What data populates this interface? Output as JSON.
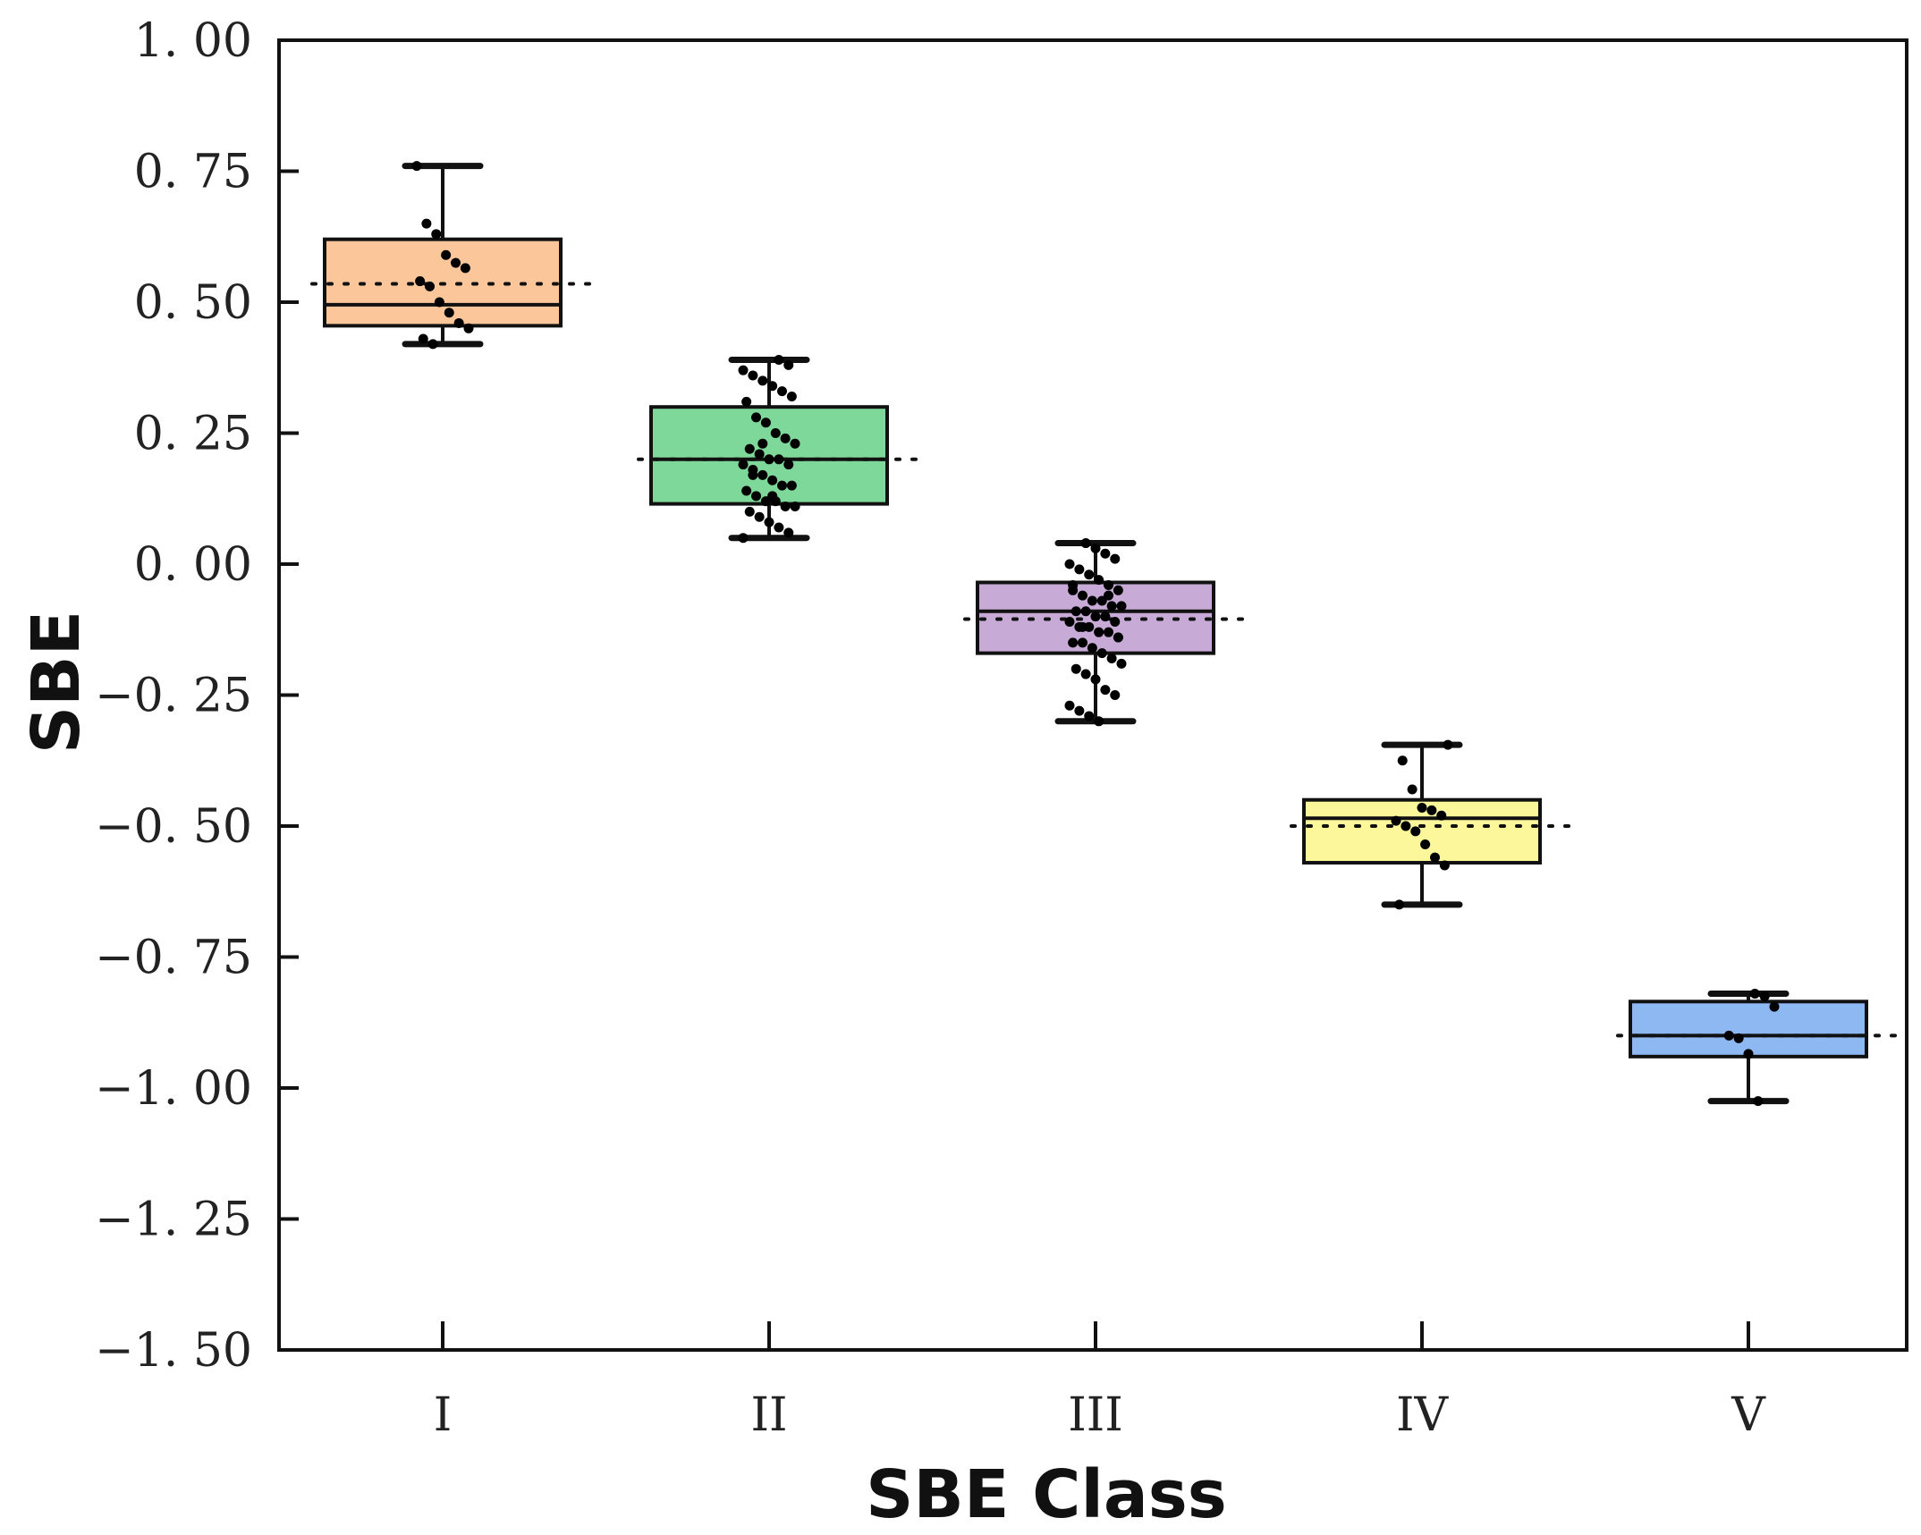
{
  "chart_data": {
    "type": "box",
    "title": "",
    "xlabel": "SBE Class",
    "ylabel": "SBE",
    "ylim": [
      -1.5,
      1.0
    ],
    "yticks": [
      1.0,
      0.75,
      0.5,
      0.25,
      0.0,
      -0.25,
      -0.5,
      -0.75,
      -1.0,
      -1.25,
      -1.5
    ],
    "ytick_labels": [
      "1. 00",
      "0. 75",
      "0. 50",
      "0. 25",
      "0. 00",
      "−0. 25",
      "−0. 50",
      "−0. 75",
      "−1. 00",
      "−1. 25",
      "−1. 50"
    ],
    "categories": [
      "I",
      "II",
      "III",
      "IV",
      "V"
    ],
    "grid": false,
    "colors": [
      "#FBC79A",
      "#7ED89A",
      "#C8AAD6",
      "#FBF79A",
      "#8DB8F1"
    ],
    "series": [
      {
        "name": "I",
        "whisker_low": 0.42,
        "q1": 0.455,
        "median": 0.495,
        "q3": 0.62,
        "whisker_high": 0.76,
        "mean": 0.535,
        "points": [
          0.76,
          0.65,
          0.63,
          0.59,
          0.575,
          0.565,
          0.54,
          0.53,
          0.5,
          0.48,
          0.46,
          0.45,
          0.43,
          0.42
        ]
      },
      {
        "name": "II",
        "whisker_low": 0.05,
        "q1": 0.115,
        "median": 0.2,
        "q3": 0.3,
        "whisker_high": 0.39,
        "mean": 0.2,
        "points": [
          0.39,
          0.38,
          0.37,
          0.36,
          0.35,
          0.34,
          0.33,
          0.32,
          0.31,
          0.28,
          0.27,
          0.25,
          0.24,
          0.23,
          0.22,
          0.21,
          0.2,
          0.2,
          0.19,
          0.19,
          0.18,
          0.17,
          0.16,
          0.15,
          0.15,
          0.14,
          0.13,
          0.12,
          0.12,
          0.11,
          0.11,
          0.1,
          0.09,
          0.08,
          0.07,
          0.06,
          0.05,
          0.17,
          0.23,
          0.13
        ]
      },
      {
        "name": "III",
        "whisker_low": -0.3,
        "q1": -0.17,
        "median": -0.09,
        "q3": -0.035,
        "whisker_high": 0.04,
        "mean": -0.105,
        "points": [
          0.04,
          0.03,
          0.02,
          0.01,
          0.0,
          -0.01,
          -0.02,
          -0.03,
          -0.04,
          -0.05,
          -0.05,
          -0.06,
          -0.07,
          -0.07,
          -0.08,
          -0.08,
          -0.09,
          -0.09,
          -0.1,
          -0.1,
          -0.11,
          -0.11,
          -0.12,
          -0.12,
          -0.13,
          -0.13,
          -0.14,
          -0.15,
          -0.15,
          -0.16,
          -0.17,
          -0.18,
          -0.19,
          -0.2,
          -0.21,
          -0.22,
          -0.24,
          -0.25,
          -0.27,
          -0.28,
          -0.29,
          -0.3,
          -0.06,
          -0.14,
          -0.04,
          -0.12
        ]
      },
      {
        "name": "IV",
        "whisker_low": -0.65,
        "q1": -0.57,
        "median": -0.485,
        "q3": -0.45,
        "whisker_high": -0.345,
        "mean": -0.5,
        "points": [
          -0.345,
          -0.375,
          -0.43,
          -0.465,
          -0.47,
          -0.48,
          -0.49,
          -0.5,
          -0.51,
          -0.535,
          -0.56,
          -0.575,
          -0.65
        ]
      },
      {
        "name": "V",
        "whisker_low": -1.025,
        "q1": -0.94,
        "median": -0.9,
        "q3": -0.835,
        "whisker_high": -0.82,
        "mean": -0.9,
        "points": [
          -0.82,
          -0.825,
          -0.845,
          -0.9,
          -0.905,
          -0.935,
          -1.025
        ]
      }
    ]
  }
}
